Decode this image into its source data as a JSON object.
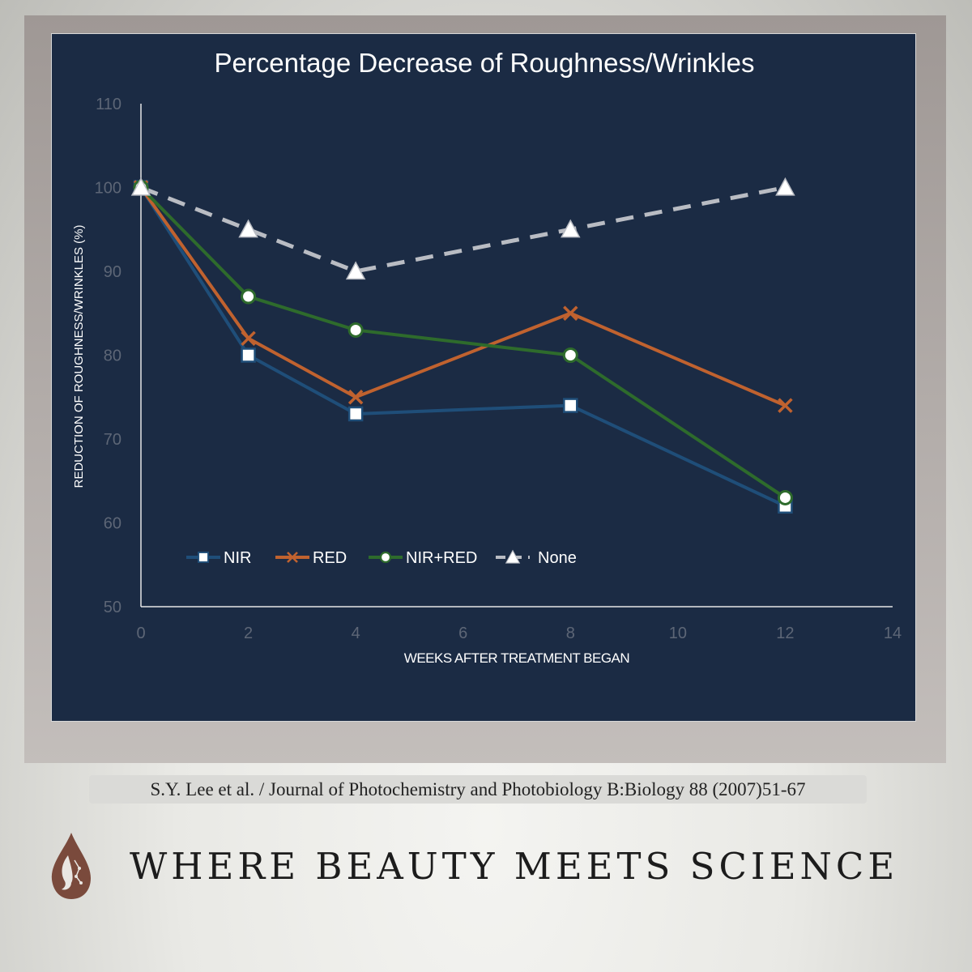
{
  "chart_data": {
    "type": "line",
    "title": "Percentage Decrease of Roughness/Wrinkles",
    "xlabel": "WEEKS AFTER TREATMENT BEGAN",
    "ylabel": "REDUCTION OF ROUGHNESS/WRINKLES (%)",
    "xlim": [
      0,
      14
    ],
    "ylim": [
      50,
      110
    ],
    "x_ticks": [
      "0",
      "2",
      "4",
      "6",
      "8",
      "10",
      "12",
      "14"
    ],
    "y_ticks": [
      "50",
      "60",
      "70",
      "80",
      "90",
      "100",
      "110"
    ],
    "grid": false,
    "legend_position": "bottom-left",
    "series": [
      {
        "name": "NIR",
        "color": "#1f4e79",
        "marker": "square",
        "dashed": false,
        "points": [
          {
            "x": 0,
            "y": 100
          },
          {
            "x": 2,
            "y": 80
          },
          {
            "x": 4,
            "y": 73
          },
          {
            "x": 8,
            "y": 74
          },
          {
            "x": 12,
            "y": 62
          }
        ]
      },
      {
        "name": "RED",
        "color": "#c0622f",
        "marker": "x",
        "dashed": false,
        "points": [
          {
            "x": 0,
            "y": 100
          },
          {
            "x": 2,
            "y": 82
          },
          {
            "x": 4,
            "y": 75
          },
          {
            "x": 8,
            "y": 85
          },
          {
            "x": 12,
            "y": 74
          }
        ]
      },
      {
        "name": "NIR+RED",
        "color": "#2e6b2c",
        "marker": "circle",
        "dashed": false,
        "points": [
          {
            "x": 0,
            "y": 100
          },
          {
            "x": 2,
            "y": 87
          },
          {
            "x": 4,
            "y": 83
          },
          {
            "x": 8,
            "y": 80
          },
          {
            "x": 12,
            "y": 63
          }
        ]
      },
      {
        "name": "None",
        "color": "#b9bcc3",
        "marker": "triangle",
        "dashed": true,
        "points": [
          {
            "x": 0,
            "y": 100
          },
          {
            "x": 2,
            "y": 95
          },
          {
            "x": 4,
            "y": 90
          },
          {
            "x": 8,
            "y": 95
          },
          {
            "x": 12,
            "y": 100
          }
        ]
      }
    ]
  },
  "citation": "S.Y. Lee et al. / Journal of Photochemistry and Photobiology B:Biology 88 (2007)51-67",
  "brand_tagline": "WHERE BEAUTY MEETS SCIENCE",
  "colors": {
    "panel_background": "#1b2b44",
    "axis": "#e6e6e6",
    "tick_label": "#5d6676",
    "logo": "#7a4a3c"
  }
}
